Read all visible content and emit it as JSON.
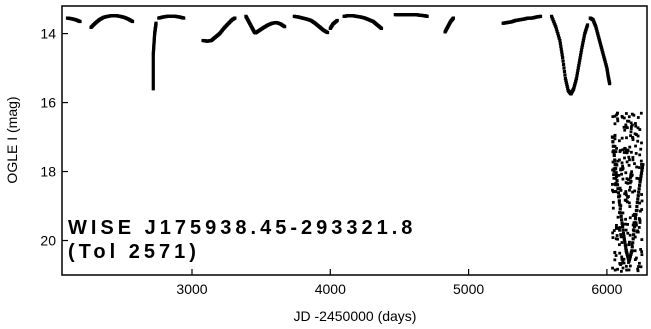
{
  "chart_data": {
    "type": "scatter",
    "title": "",
    "xlabel": "JD -2450000 (days)",
    "ylabel": "OGLE I (mag)",
    "xlim": [
      2060,
      6290
    ],
    "ylim": [
      21.0,
      13.2
    ],
    "y_inverted": true,
    "grid": false,
    "x_ticks": [
      3000,
      4000,
      5000,
      6000
    ],
    "x_tick_labels": [
      "3000",
      "4000",
      "5000",
      "6000"
    ],
    "y_ticks": [
      14,
      16,
      18,
      20
    ],
    "y_tick_labels": [
      "14",
      "16",
      "18",
      "20"
    ],
    "annotations": [
      "WISE J175938.45-293321.8",
      "(Tol 2571)"
    ],
    "marker_color": "#000000",
    "series": [
      {
        "segments": [
          {
            "x": [
              2100,
              2130,
              2160,
              2190
            ],
            "y": [
              13.55,
              13.57,
              13.6,
              13.65
            ]
          },
          {
            "x": [
              2270,
              2300,
              2330,
              2360,
              2390,
              2420,
              2450,
              2480,
              2510,
              2540,
              2570
            ],
            "y": [
              13.82,
              13.7,
              13.6,
              13.53,
              13.5,
              13.48,
              13.48,
              13.5,
              13.53,
              13.58,
              13.65
            ]
          },
          {
            "x": [
              2720,
              2720,
              2720,
              2725,
              2730,
              2735,
              2740
            ],
            "y": [
              15.6,
              15.1,
              14.6,
              14.3,
              14.0,
              13.85,
              13.7
            ]
          },
          {
            "x": [
              2760,
              2790,
              2820,
              2850,
              2880,
              2910,
              2940
            ],
            "y": [
              13.55,
              13.52,
              13.5,
              13.5,
              13.5,
              13.52,
              13.55
            ]
          },
          {
            "x": [
              3080,
              3110,
              3140,
              3170,
              3200,
              3230,
              3260,
              3290,
              3310
            ],
            "y": [
              14.2,
              14.22,
              14.2,
              14.1,
              14.0,
              13.85,
              13.72,
              13.6,
              13.55
            ]
          },
          {
            "x": [
              3390,
              3410,
              3430,
              3450,
              3460,
              3490,
              3520,
              3550,
              3580,
              3610,
              3640,
              3670
            ],
            "y": [
              13.5,
              13.65,
              13.8,
              13.95,
              13.98,
              13.9,
              13.82,
              13.75,
              13.7,
              13.68,
              13.72,
              13.8
            ]
          },
          {
            "x": [
              3740,
              3770,
              3800,
              3830,
              3860,
              3890,
              3920,
              3950,
              3980
            ],
            "y": [
              13.5,
              13.52,
              13.55,
              13.58,
              13.62,
              13.7,
              13.8,
              13.9,
              13.97
            ]
          },
          {
            "x": [
              4000,
              4020,
              4050
            ],
            "y": [
              13.85,
              13.72,
              13.62
            ]
          },
          {
            "x": [
              4100,
              4130,
              4160,
              4190,
              4220,
              4250,
              4280,
              4310,
              4340,
              4370
            ],
            "y": [
              13.5,
              13.48,
              13.48,
              13.5,
              13.52,
              13.55,
              13.6,
              13.65,
              13.75,
              13.85
            ]
          },
          {
            "x": [
              4470,
              4500,
              4530,
              4560,
              4590,
              4620,
              4650,
              4680,
              4700
            ],
            "y": [
              13.45,
              13.45,
              13.45,
              13.45,
              13.45,
              13.45,
              13.47,
              13.48,
              13.5
            ]
          },
          {
            "x": [
              4830,
              4850,
              4870,
              4890
            ],
            "y": [
              13.95,
              13.8,
              13.65,
              13.55
            ]
          },
          {
            "x": [
              5250,
              5280,
              5310,
              5340,
              5370,
              5400,
              5430,
              5460,
              5490,
              5520
            ],
            "y": [
              13.7,
              13.68,
              13.66,
              13.62,
              13.6,
              13.58,
              13.55,
              13.55,
              13.52,
              13.5
            ]
          },
          {
            "x": [
              5600,
              5630,
              5660,
              5680,
              5700,
              5720,
              5740,
              5760,
              5780,
              5800,
              5820,
              5840,
              5860
            ],
            "y": [
              13.5,
              13.8,
              14.2,
              14.7,
              15.3,
              15.65,
              15.75,
              15.6,
              15.3,
              14.85,
              14.4,
              14.0,
              13.75
            ]
          },
          {
            "x": [
              5880,
              5900,
              5920,
              5940,
              5960,
              5980,
              6000,
              6010,
              6020
            ],
            "y": [
              13.55,
              13.6,
              13.8,
              14.1,
              14.4,
              14.7,
              15.0,
              15.25,
              15.45
            ]
          },
          {
            "x": [
              6040,
              6060,
              6080,
              6100,
              6120,
              6140,
              6160,
              6180,
              6200,
              6220,
              6240,
              6260
            ],
            "y": [
              17.0,
              17.8,
              18.5,
              19.2,
              19.8,
              20.3,
              20.6,
              20.3,
              19.6,
              18.9,
              18.3,
              17.8
            ]
          }
        ]
      }
    ]
  }
}
